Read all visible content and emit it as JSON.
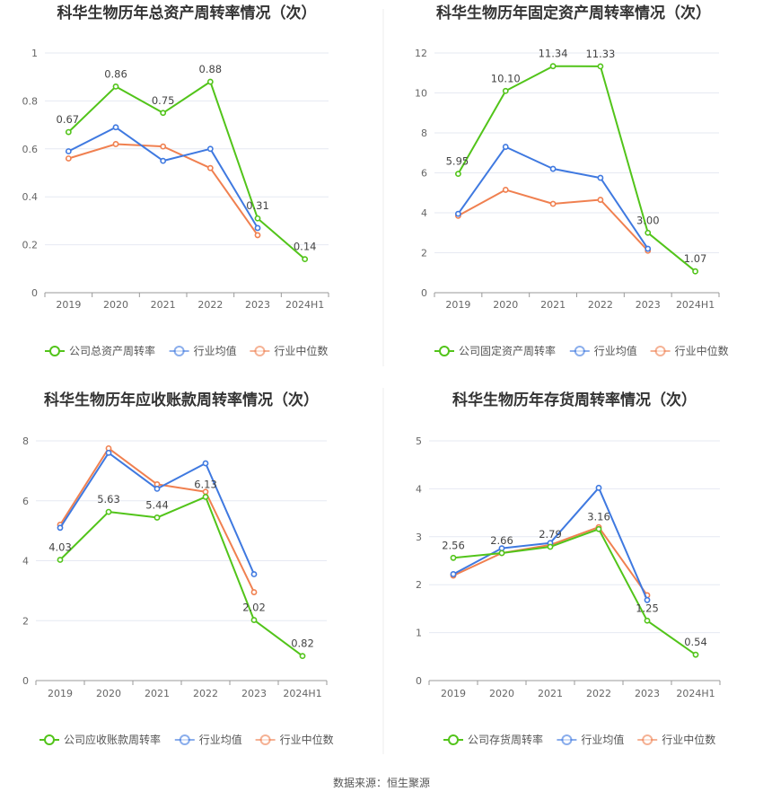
{
  "source_text": "数据来源：恒生聚源",
  "colors": {
    "company": "#52c41a",
    "mean": "#3f79e0",
    "median": "#f08050",
    "grid": "#e6e9f2",
    "axis": "#999999"
  },
  "chart_data": [
    {
      "type": "line",
      "title": "科华生物历年总资产周转率情况（次）",
      "categories": [
        "2019",
        "2020",
        "2021",
        "2022",
        "2023",
        "2024H1"
      ],
      "ylim": [
        0,
        1
      ],
      "yticks": [
        "0",
        "0.2",
        "0.4",
        "0.6",
        "0.8",
        "1"
      ],
      "grid": true,
      "legend_position": "bottom",
      "series": [
        {
          "name": "公司总资产周转率",
          "color": "#52c41a",
          "values": [
            0.67,
            0.86,
            0.75,
            0.88,
            0.31,
            0.14
          ],
          "labels": [
            "0.67",
            "0.86",
            "0.75",
            "0.88",
            "0.31",
            "0.14"
          ]
        },
        {
          "name": "行业均值",
          "color": "#3f79e0",
          "values": [
            0.59,
            0.69,
            0.55,
            0.6,
            0.27,
            null
          ]
        },
        {
          "name": "行业中位数",
          "color": "#f08050",
          "values": [
            0.56,
            0.62,
            0.61,
            0.52,
            0.24,
            null
          ]
        }
      ]
    },
    {
      "type": "line",
      "title": "科华生物历年固定资产周转率情况（次）",
      "categories": [
        "2019",
        "2020",
        "2021",
        "2022",
        "2023",
        "2024H1"
      ],
      "ylim": [
        0,
        12
      ],
      "yticks": [
        "0",
        "2",
        "4",
        "6",
        "8",
        "10",
        "12"
      ],
      "grid": true,
      "legend_position": "bottom",
      "series": [
        {
          "name": "公司固定资产周转率",
          "color": "#52c41a",
          "values": [
            5.95,
            10.1,
            11.34,
            11.33,
            3.0,
            1.07
          ],
          "labels": [
            "5.95",
            "10.10",
            "11.34",
            "11.33",
            "3.00",
            "1.07"
          ]
        },
        {
          "name": "行业均值",
          "color": "#3f79e0",
          "values": [
            3.95,
            7.3,
            6.2,
            5.75,
            2.2,
            null
          ]
        },
        {
          "name": "行业中位数",
          "color": "#f08050",
          "values": [
            3.85,
            5.15,
            4.45,
            4.65,
            2.1,
            null
          ]
        }
      ]
    },
    {
      "type": "line",
      "title": "科华生物历年应收账款周转率情况（次）",
      "categories": [
        "2019",
        "2020",
        "2021",
        "2022",
        "2023",
        "2024H1"
      ],
      "ylim": [
        0,
        8
      ],
      "yticks": [
        "0",
        "2",
        "4",
        "6",
        "8"
      ],
      "grid": true,
      "legend_position": "bottom",
      "series": [
        {
          "name": "公司应收账款周转率",
          "color": "#52c41a",
          "values": [
            4.03,
            5.63,
            5.44,
            6.13,
            2.02,
            0.82
          ],
          "labels": [
            "4.03",
            "5.63",
            "5.44",
            "6.13",
            "2.02",
            "0.82"
          ]
        },
        {
          "name": "行业均值",
          "color": "#3f79e0",
          "values": [
            5.1,
            7.6,
            6.4,
            7.25,
            3.55,
            null
          ]
        },
        {
          "name": "行业中位数",
          "color": "#f08050",
          "values": [
            5.2,
            7.75,
            6.55,
            6.3,
            2.95,
            null
          ]
        }
      ]
    },
    {
      "type": "line",
      "title": "科华生物历年存货周转率情况（次）",
      "categories": [
        "2019",
        "2020",
        "2021",
        "2022",
        "2023",
        "2024H1"
      ],
      "ylim": [
        0,
        5
      ],
      "yticks": [
        "0",
        "1",
        "2",
        "3",
        "4",
        "5"
      ],
      "grid": true,
      "legend_position": "bottom",
      "series": [
        {
          "name": "公司存货周转率",
          "color": "#52c41a",
          "values": [
            2.56,
            2.66,
            2.79,
            3.16,
            1.25,
            0.54
          ],
          "labels": [
            "2.56",
            "2.66",
            "2.79",
            "3.16",
            "1.25",
            "0.54"
          ]
        },
        {
          "name": "行业均值",
          "color": "#3f79e0",
          "values": [
            2.22,
            2.76,
            2.87,
            4.02,
            1.68,
            null
          ]
        },
        {
          "name": "行业中位数",
          "color": "#f08050",
          "values": [
            2.19,
            2.66,
            2.83,
            3.2,
            1.78,
            null
          ]
        }
      ]
    }
  ]
}
